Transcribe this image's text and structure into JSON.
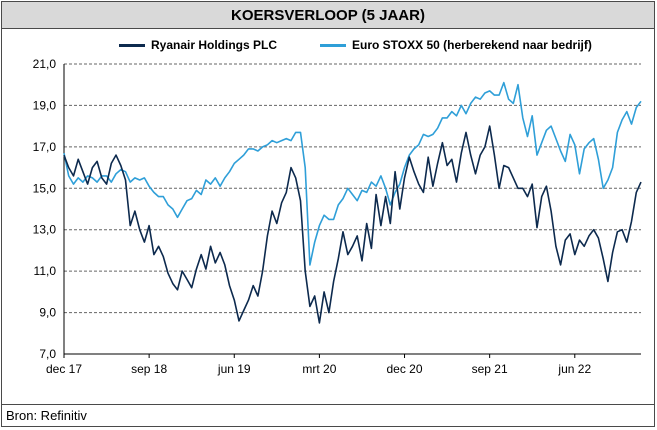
{
  "title": "KOERSVERLOOP (5 JAAR)",
  "source": "Bron: Refinitiv",
  "colors": {
    "ryanair": "#0d2a4e",
    "stoxx": "#2f9fd8",
    "grid": "#666666"
  },
  "chart_data": {
    "type": "line",
    "title": "KOERSVERLOOP (5 JAAR)",
    "xlabel": "",
    "ylabel": "",
    "ylim": [
      7.0,
      21.0
    ],
    "yticks": [
      "7,0",
      "9,0",
      "11,0",
      "13,0",
      "15,0",
      "17,0",
      "19,0",
      "21,0"
    ],
    "ytick_values": [
      7,
      9,
      11,
      13,
      15,
      17,
      19,
      21
    ],
    "xticks": [
      "dec 17",
      "sep 18",
      "jun 19",
      "mrt 20",
      "dec 20",
      "sep 21",
      "jun 22"
    ],
    "xlim": [
      0,
      61
    ],
    "xtick_values": [
      0,
      9,
      18,
      27,
      36,
      45,
      54
    ],
    "grid": "horizontal dashed",
    "legend_position": "top",
    "series": [
      {
        "name": "Ryanair Holdings PLC",
        "x": [
          0,
          0.5,
          1,
          1.5,
          2,
          2.5,
          3,
          3.5,
          4,
          4.5,
          5,
          5.5,
          6,
          6.5,
          7,
          7.5,
          8,
          8.5,
          9,
          9.5,
          10,
          10.5,
          11,
          11.5,
          12,
          12.5,
          13,
          13.5,
          14,
          14.5,
          15,
          15.5,
          16,
          16.5,
          17,
          17.5,
          18,
          18.5,
          19,
          19.5,
          20,
          20.5,
          21,
          21.5,
          22,
          22.5,
          23,
          23.5,
          24,
          24.5,
          25,
          25.5,
          26,
          26.5,
          27,
          27.5,
          28,
          28.5,
          29,
          29.5,
          30,
          30.5,
          31,
          31.5,
          32,
          32.5,
          33,
          33.5,
          34,
          34.5,
          35,
          35.5,
          36,
          36.5,
          37,
          37.5,
          38,
          38.5,
          39,
          39.5,
          40,
          40.5,
          41,
          41.5,
          42,
          42.5,
          43,
          43.5,
          44,
          44.5,
          45,
          45.5,
          46,
          46.5,
          47,
          47.5,
          48,
          48.5,
          49,
          49.5,
          50,
          50.5,
          51,
          51.5,
          52,
          52.5,
          53,
          53.5,
          54,
          54.5,
          55,
          55.5,
          56,
          56.5,
          57,
          57.5,
          58,
          58.5,
          59,
          59.5,
          60,
          60.5,
          61
        ],
        "values": [
          16.6,
          16.0,
          15.6,
          16.4,
          15.8,
          15.2,
          16.0,
          16.3,
          15.5,
          15.2,
          16.2,
          16.6,
          16.1,
          15.4,
          13.2,
          13.9,
          13.0,
          12.4,
          13.2,
          11.8,
          12.2,
          11.7,
          10.9,
          10.4,
          10.1,
          11.0,
          10.6,
          10.2,
          11.1,
          11.8,
          11.1,
          12.2,
          11.4,
          11.9,
          11.3,
          10.3,
          9.6,
          8.6,
          9.1,
          9.6,
          10.3,
          9.8,
          11.0,
          12.7,
          13.9,
          13.3,
          14.3,
          14.8,
          16.0,
          15.5,
          14.4,
          11.0,
          9.3,
          9.8,
          8.5,
          10.0,
          9.0,
          10.5,
          11.6,
          12.9,
          11.8,
          12.2,
          12.7,
          11.5,
          13.3,
          12.1,
          14.7,
          13.2,
          14.6,
          13.3,
          15.8,
          14.0,
          15.5,
          16.5,
          15.8,
          15.2,
          14.8,
          16.5,
          15.1,
          16.2,
          17.2,
          16.1,
          16.4,
          15.3,
          16.7,
          17.7,
          16.6,
          15.7,
          16.6,
          17.0,
          18.0,
          16.6,
          15.0,
          16.1,
          16.0,
          15.5,
          15.0,
          15.0,
          14.6,
          15.2,
          13.1,
          14.6,
          15.1,
          13.9,
          12.2,
          11.3,
          12.5,
          12.8,
          11.8,
          12.5,
          12.2,
          12.7,
          13.0,
          12.6,
          11.6,
          10.5,
          11.9,
          12.9,
          13.0,
          12.4,
          13.4,
          14.8,
          15.3
        ]
      },
      {
        "name": "Euro STOXX 50 (herberekend naar bedrijf)",
        "x": [
          0,
          0.5,
          1,
          1.5,
          2,
          2.5,
          3,
          3.5,
          4,
          4.5,
          5,
          5.5,
          6,
          6.5,
          7,
          7.5,
          8,
          8.5,
          9,
          9.5,
          10,
          10.5,
          11,
          11.5,
          12,
          12.5,
          13,
          13.5,
          14,
          14.5,
          15,
          15.5,
          16,
          16.5,
          17,
          17.5,
          18,
          18.5,
          19,
          19.5,
          20,
          20.5,
          21,
          21.5,
          22,
          22.5,
          23,
          23.5,
          24,
          24.5,
          25,
          25.5,
          26,
          26.5,
          27,
          27.5,
          28,
          28.5,
          29,
          29.5,
          30,
          30.5,
          31,
          31.5,
          32,
          32.5,
          33,
          33.5,
          34,
          34.5,
          35,
          35.5,
          36,
          36.5,
          37,
          37.5,
          38,
          38.5,
          39,
          39.5,
          40,
          40.5,
          41,
          41.5,
          42,
          42.5,
          43,
          43.5,
          44,
          44.5,
          45,
          45.5,
          46,
          46.5,
          47,
          47.5,
          48,
          48.5,
          49,
          49.5,
          50,
          50.5,
          51,
          51.5,
          52,
          52.5,
          53,
          53.5,
          54,
          54.5,
          55,
          55.5,
          56,
          56.5,
          57,
          57.5,
          58,
          58.5,
          59,
          59.5,
          60,
          60.5,
          61
        ],
        "values": [
          16.7,
          15.6,
          15.2,
          15.5,
          15.3,
          15.6,
          15.5,
          15.3,
          15.6,
          15.6,
          15.3,
          15.7,
          15.9,
          15.8,
          15.3,
          15.5,
          15.4,
          15.5,
          15.1,
          14.8,
          14.6,
          14.6,
          14.2,
          14.0,
          13.6,
          14.0,
          14.4,
          14.5,
          14.9,
          14.7,
          15.4,
          15.2,
          15.5,
          15.1,
          15.5,
          15.8,
          16.2,
          16.4,
          16.6,
          16.9,
          16.9,
          16.8,
          17.0,
          17.1,
          17.3,
          17.2,
          17.3,
          17.4,
          17.3,
          17.7,
          17.7,
          16.0,
          11.3,
          12.4,
          13.2,
          13.7,
          13.5,
          13.5,
          14.2,
          14.5,
          15.0,
          14.7,
          14.4,
          14.9,
          14.8,
          15.3,
          15.1,
          15.6,
          15.0,
          14.2,
          14.8,
          15.2,
          16.0,
          16.6,
          16.9,
          17.1,
          17.6,
          17.5,
          17.6,
          17.9,
          18.4,
          18.4,
          18.7,
          18.5,
          19.0,
          18.6,
          19.1,
          19.4,
          19.3,
          19.6,
          19.7,
          19.5,
          19.5,
          20.1,
          19.3,
          19.1,
          20.0,
          18.4,
          17.5,
          18.5,
          16.6,
          17.2,
          17.8,
          18.0,
          17.4,
          16.8,
          16.3,
          17.6,
          17.1,
          15.7,
          16.9,
          17.2,
          17.4,
          16.4,
          15.0,
          15.4,
          16.0,
          17.7,
          18.3,
          18.7,
          18.1,
          18.9,
          19.2
        ]
      }
    ]
  }
}
